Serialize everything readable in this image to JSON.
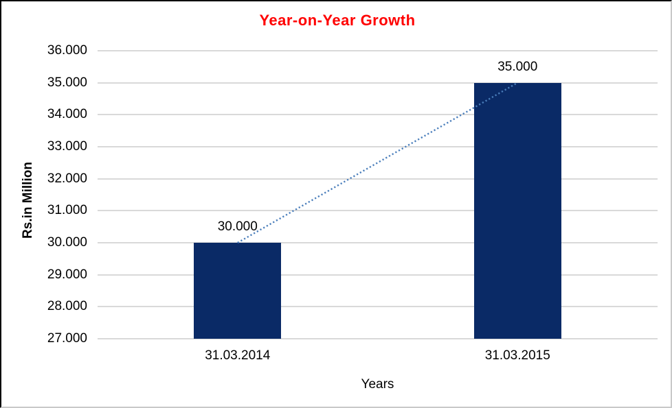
{
  "chart_data": {
    "type": "bar",
    "title": "Year-on-Year Growth",
    "title_color": "#FF0000",
    "xlabel": "Years",
    "ylabel": "Rs.in Million",
    "categories": [
      "31.03.2014",
      "31.03.2015"
    ],
    "values": [
      30000,
      35000
    ],
    "data_labels": [
      "30.000",
      "35.000"
    ],
    "ylim": [
      27000,
      36000
    ],
    "ytick_step": 1000,
    "ytick_labels": [
      "27.000",
      "28.000",
      "29.000",
      "30.000",
      "31.000",
      "32.000",
      "33.000",
      "34.000",
      "35.000",
      "36.000"
    ],
    "grid": true,
    "legend": "none",
    "bar_color": "#0A2A66",
    "gridline_color": "#D9D9D9",
    "trendline": {
      "type": "linear",
      "style": "dotted",
      "color": "#4A7EBB",
      "connects": [
        "30000",
        "35000"
      ]
    }
  }
}
